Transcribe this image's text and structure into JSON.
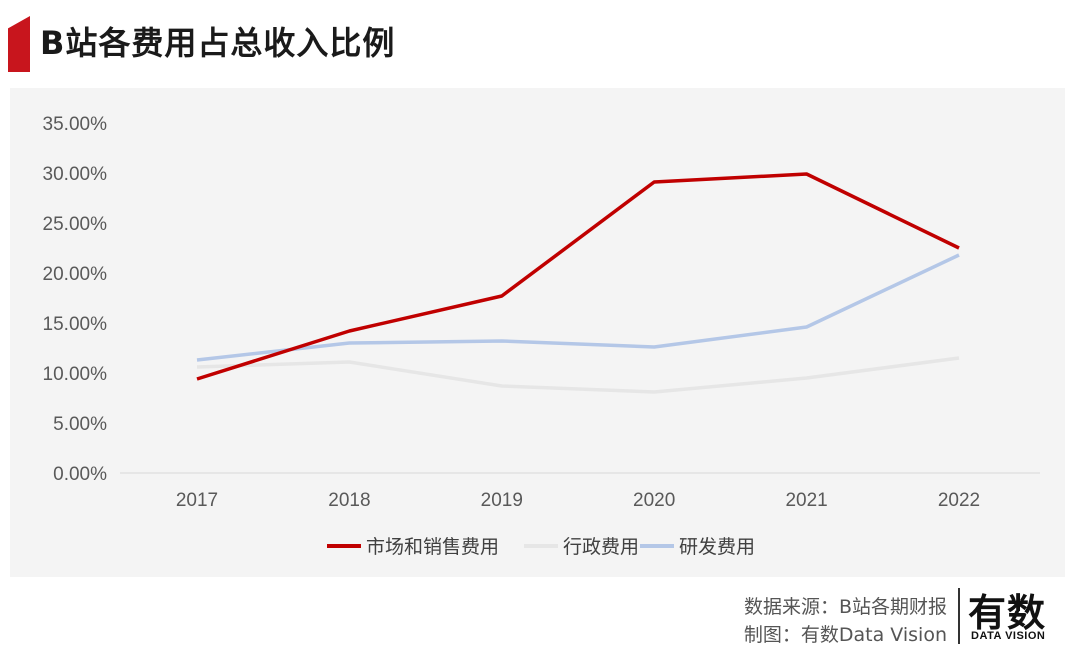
{
  "header": {
    "title": "B站各费用占总收入比例"
  },
  "chart_data": {
    "type": "line",
    "categories": [
      "2017",
      "2018",
      "2019",
      "2020",
      "2021",
      "2022"
    ],
    "series": [
      {
        "name": "市场和销售费用",
        "color": "#c00000",
        "values": [
          9.4,
          14.2,
          17.7,
          29.1,
          29.9,
          22.5
        ]
      },
      {
        "name": "行政费用",
        "color": "#e6e6e6",
        "values": [
          10.6,
          11.1,
          8.7,
          8.1,
          9.5,
          11.5
        ]
      },
      {
        "name": "研发费用",
        "color": "#b4c7e7",
        "values": [
          11.3,
          13.0,
          13.2,
          12.6,
          14.6,
          21.8
        ]
      }
    ],
    "ylim": [
      0,
      35
    ],
    "yticks": [
      "0.00%",
      "5.00%",
      "10.00%",
      "15.00%",
      "20.00%",
      "25.00%",
      "30.00%",
      "35.00%"
    ],
    "ytick_values": [
      0,
      5,
      10,
      15,
      20,
      25,
      30,
      35
    ],
    "grid": false,
    "legend": "bottom"
  },
  "footer": {
    "source": "数据来源：B站各期财报",
    "credit": "制图：有数Data Vision",
    "logo_text": "有数",
    "logo_sub": "DATA VISION"
  }
}
